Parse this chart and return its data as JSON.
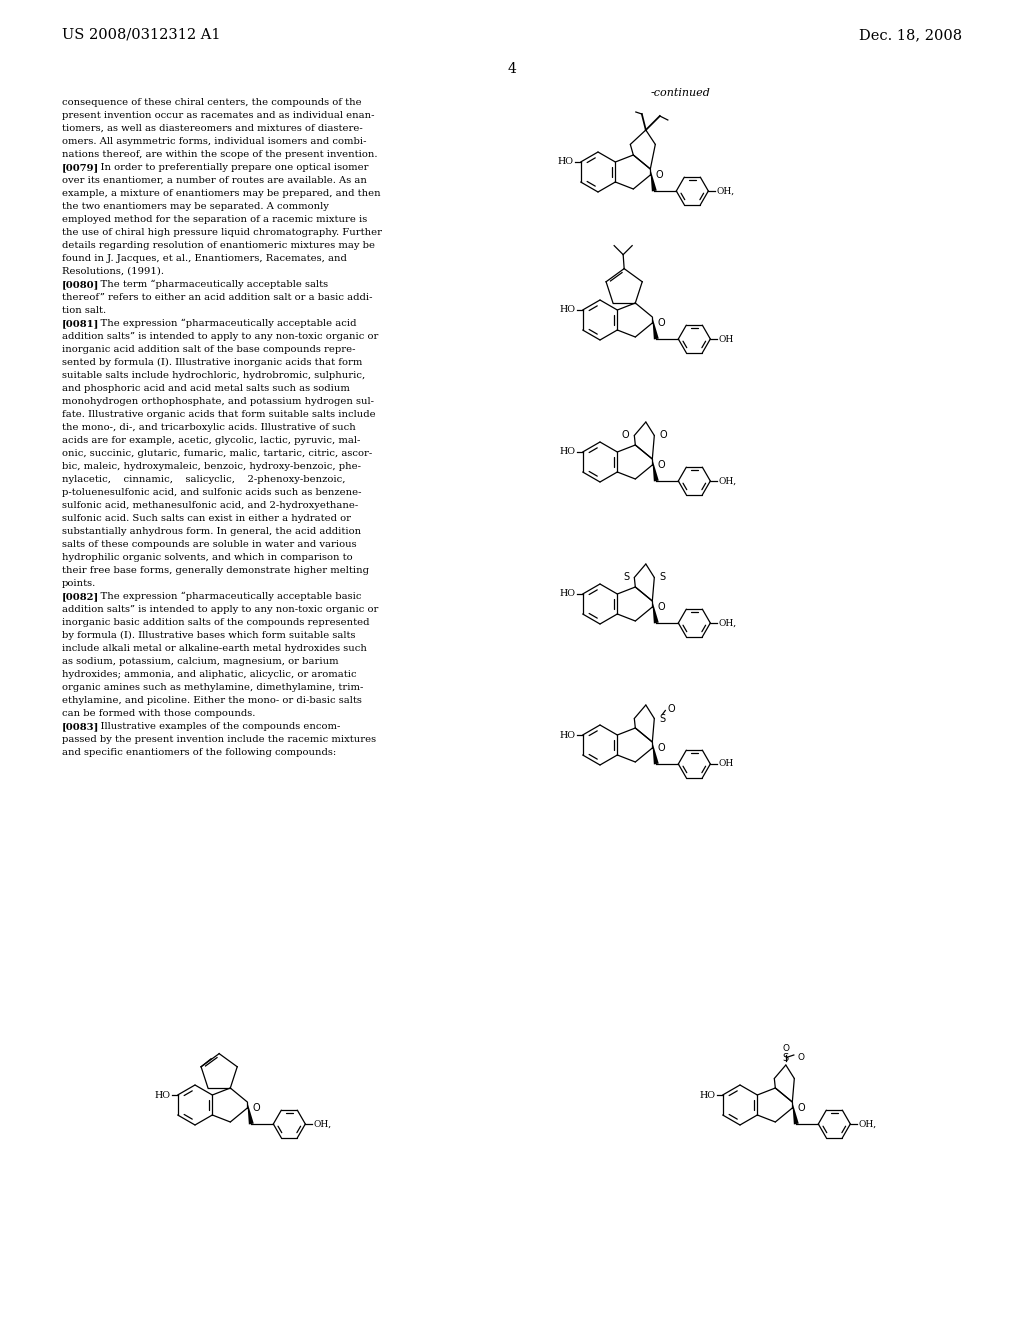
{
  "header_left": "US 2008/0312312 A1",
  "header_right": "Dec. 18, 2008",
  "page_number": "4",
  "bg_color": "#ffffff",
  "text_color": "#000000",
  "body_lines": [
    "consequence of these chiral centers, the compounds of the",
    "present invention occur as racemates and as individual enan-",
    "tiomers, as well as diastereomers and mixtures of diastere-",
    "omers. All asymmetric forms, individual isomers and combi-",
    "nations thereof, are within the scope of the present invention.",
    "BOLD[0079]    In order to preferentially prepare one optical isomer",
    "over its enantiomer, a number of routes are available. As an",
    "example, a mixture of enantiomers may be prepared, and then",
    "the two enantiomers may be separated. A commonly",
    "employed method for the separation of a racemic mixture is",
    "the use of chiral high pressure liquid chromatography. Further",
    "details regarding resolution of enantiomeric mixtures may be",
    "found in J. Jacques, et al., Enantiomers, Racemates, and",
    "Resolutions, (1991).",
    "BOLD[0080]    The term “pharmaceutically acceptable salts",
    "thereof” refers to either an acid addition salt or a basic addi-",
    "tion salt.",
    "BOLD[0081]    The expression “pharmaceutically acceptable acid",
    "addition salts” is intended to apply to any non-toxic organic or",
    "inorganic acid addition salt of the base compounds repre-",
    "sented by formula (I). Illustrative inorganic acids that form",
    "suitable salts include hydrochloric, hydrobromic, sulphuric,",
    "and phosphoric acid and acid metal salts such as sodium",
    "monohydrogen orthophosphate, and potassium hydrogen sul-",
    "fate. Illustrative organic acids that form suitable salts include",
    "the mono-, di-, and tricarboxylic acids. Illustrative of such",
    "acids are for example, acetic, glycolic, lactic, pyruvic, mal-",
    "onic, succinic, glutaric, fumaric, malic, tartaric, citric, ascor-",
    "bic, maleic, hydroxymaleic, benzoic, hydroxy-benzoic, phe-",
    "nylacetic,    cinnamic,    salicyclic,    2-phenoxy-benzoic,",
    "p-toluenesulfonic acid, and sulfonic acids such as benzene-",
    "sulfonic acid, methanesulfonic acid, and 2-hydroxyethane-",
    "sulfonic acid. Such salts can exist in either a hydrated or",
    "substantially anhydrous form. In general, the acid addition",
    "salts of these compounds are soluble in water and various",
    "hydrophilic organic solvents, and which in comparison to",
    "their free base forms, generally demonstrate higher melting",
    "points.",
    "BOLD[0082]    The expression “pharmaceutically acceptable basic",
    "addition salts” is intended to apply to any non-toxic organic or",
    "inorganic basic addition salts of the compounds represented",
    "by formula (I). Illustrative bases which form suitable salts",
    "include alkali metal or alkaline-earth metal hydroxides such",
    "as sodium, potassium, calcium, magnesium, or barium",
    "hydroxides; ammonia, and aliphatic, alicyclic, or aromatic",
    "organic amines such as methylamine, dimethylamine, trim-",
    "ethylamine, and picoline. Either the mono- or di-basic salts",
    "can be formed with those compounds.",
    "BOLD[0083]    Illustrative examples of the compounds encom-",
    "passed by the present invention include the racemic mixtures",
    "and specific enantiomers of the following compounds:"
  ],
  "font_size_body": 7.2,
  "font_size_header": 10.5
}
